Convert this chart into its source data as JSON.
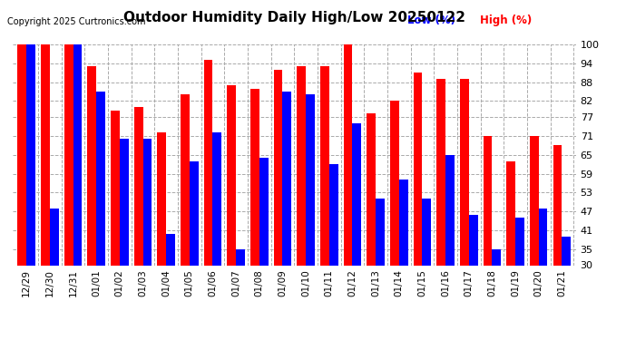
{
  "title": "Outdoor Humidity Daily High/Low 20250122",
  "copyright": "Copyright 2025 Curtronics.com",
  "legend_low": "Low (%)",
  "legend_high": "High (%)",
  "low_color": "#0000ff",
  "high_color": "#ff0000",
  "background_color": "#ffffff",
  "grid_color": "#aaaaaa",
  "ylim": [
    30,
    100
  ],
  "yticks": [
    30,
    35,
    41,
    47,
    53,
    59,
    65,
    71,
    77,
    82,
    88,
    94,
    100
  ],
  "categories": [
    "12/29",
    "12/30",
    "12/31",
    "01/01",
    "01/02",
    "01/03",
    "01/04",
    "01/05",
    "01/06",
    "01/07",
    "01/08",
    "01/09",
    "01/10",
    "01/11",
    "01/12",
    "01/13",
    "01/14",
    "01/15",
    "01/16",
    "01/17",
    "01/18",
    "01/19",
    "01/20",
    "01/21"
  ],
  "high_values": [
    100,
    100,
    100,
    93,
    79,
    80,
    72,
    84,
    95,
    87,
    86,
    92,
    93,
    93,
    100,
    78,
    82,
    91,
    89,
    89,
    71,
    63,
    71,
    68
  ],
  "low_values": [
    100,
    48,
    100,
    85,
    70,
    70,
    40,
    63,
    72,
    35,
    64,
    85,
    84,
    62,
    75,
    51,
    57,
    51,
    65,
    46,
    35,
    45,
    48,
    39
  ]
}
